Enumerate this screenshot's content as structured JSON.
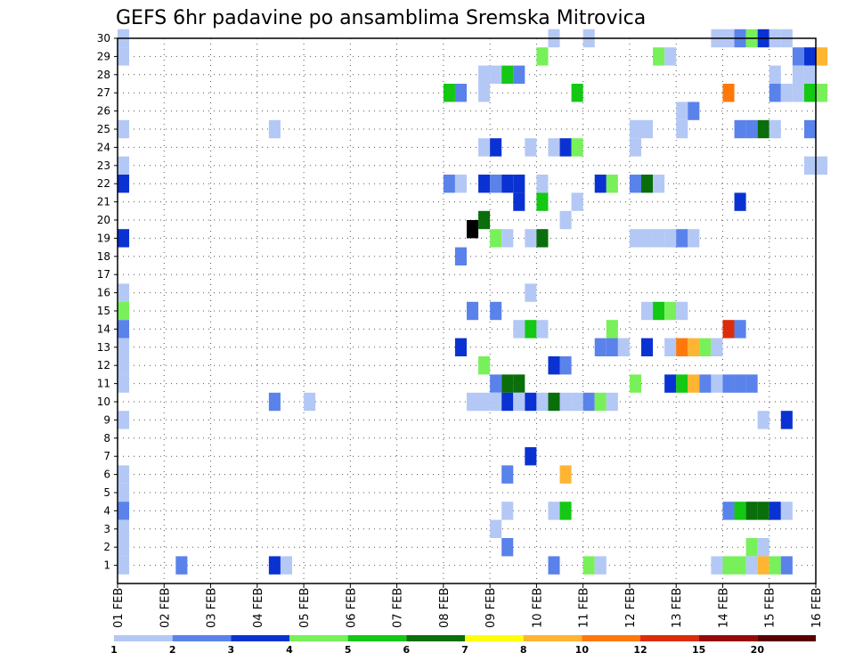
{
  "chart_data": {
    "type": "heatmap",
    "title": "GEFS 6hr padavine po ansamblima Sremska Mitrovica",
    "xlabel": "",
    "ylabel": "",
    "x_ticks": [
      "01 FEB",
      "02 FEB",
      "03 FEB",
      "04 FEB",
      "05 FEB",
      "06 FEB",
      "07 FEB",
      "08 FEB",
      "09 FEB",
      "10 FEB",
      "11 FEB",
      "12 FEB",
      "13 FEB",
      "14 FEB",
      "15 FEB",
      "16 FEB"
    ],
    "y_ticks": [
      "1",
      "2",
      "3",
      "4",
      "5",
      "6",
      "7",
      "8",
      "9",
      "10",
      "11",
      "12",
      "13",
      "14",
      "15",
      "16",
      "17",
      "18",
      "19",
      "20",
      "21",
      "22",
      "23",
      "24",
      "25",
      "26",
      "27",
      "28",
      "29",
      "30"
    ],
    "ylim": [
      0,
      30
    ],
    "time_step_hours": 6,
    "grid": true,
    "legend": {
      "placement": "bottom",
      "thresholds": [
        "1",
        "2",
        "3",
        "4",
        "5",
        "6",
        "7",
        "8",
        "10",
        "12",
        "15",
        "20"
      ],
      "colors": [
        "#b4c8f5",
        "#5a82eb",
        "#0a32d2",
        "#78f05a",
        "#14c814",
        "#0a6e0a",
        "#ffff0a",
        "#ffb432",
        "#ff780a",
        "#dc2d0a",
        "#960a0a",
        "#5a0000"
      ]
    },
    "cells": [
      [
        0,
        1.0,
        1
      ],
      [
        0,
        30.0,
        1
      ],
      [
        0,
        29.0,
        1
      ],
      [
        0,
        25.0,
        1
      ],
      [
        0,
        23.0,
        1
      ],
      [
        0,
        22.0,
        3
      ],
      [
        0,
        19.0,
        3
      ],
      [
        0,
        16.0,
        1
      ],
      [
        0,
        15.0,
        4
      ],
      [
        0,
        14.0,
        2
      ],
      [
        0,
        13.0,
        1
      ],
      [
        0,
        12.0,
        1
      ],
      [
        0,
        11.0,
        1
      ],
      [
        0,
        9.0,
        1
      ],
      [
        0,
        6.0,
        1
      ],
      [
        0,
        5.0,
        1
      ],
      [
        0,
        4.0,
        2
      ],
      [
        0,
        3.0,
        1
      ],
      [
        0,
        2.0,
        1
      ],
      [
        1.25,
        1.0,
        2
      ],
      [
        3.25,
        1.0,
        3
      ],
      [
        3.5,
        1.0,
        1
      ],
      [
        3.25,
        25.0,
        1
      ],
      [
        3.25,
        10.0,
        2
      ],
      [
        4.0,
        10.0,
        1
      ],
      [
        7.0,
        27.0,
        5
      ],
      [
        7.25,
        27.0,
        2
      ],
      [
        7.0,
        22.0,
        2
      ],
      [
        7.25,
        22.0,
        1
      ],
      [
        7.25,
        18.0,
        2
      ],
      [
        7.25,
        13.0,
        3
      ],
      [
        7.5,
        19.5,
        15
      ],
      [
        7.5,
        15.0,
        2
      ],
      [
        7.5,
        10.0,
        1
      ],
      [
        7.75,
        10.0,
        1
      ],
      [
        7.75,
        20.0,
        6
      ],
      [
        7.75,
        28.0,
        1
      ],
      [
        7.75,
        27.0,
        1
      ],
      [
        7.75,
        24.0,
        1
      ],
      [
        7.75,
        22.0,
        3
      ],
      [
        7.75,
        12.0,
        4
      ],
      [
        8.0,
        28.0,
        1
      ],
      [
        8.0,
        24.0,
        3
      ],
      [
        8.0,
        22.0,
        2
      ],
      [
        8.0,
        19.0,
        4
      ],
      [
        8.0,
        15.0,
        2
      ],
      [
        8.0,
        11.0,
        2
      ],
      [
        8.0,
        10.0,
        1
      ],
      [
        8.0,
        3.0,
        1
      ],
      [
        8.25,
        28.0,
        5
      ],
      [
        8.25,
        22.0,
        3
      ],
      [
        8.25,
        19.0,
        1
      ],
      [
        8.25,
        11.0,
        6
      ],
      [
        8.25,
        10.0,
        3
      ],
      [
        8.25,
        6.0,
        2
      ],
      [
        8.25,
        4.0,
        1
      ],
      [
        8.25,
        2.0,
        2
      ],
      [
        8.5,
        28.0,
        2
      ],
      [
        8.5,
        22.0,
        3
      ],
      [
        8.5,
        21.0,
        3
      ],
      [
        8.5,
        14.0,
        1
      ],
      [
        8.5,
        11.0,
        6
      ],
      [
        8.5,
        10.0,
        1
      ],
      [
        8.75,
        24.0,
        1
      ],
      [
        8.75,
        19.0,
        1
      ],
      [
        8.75,
        16.0,
        1
      ],
      [
        8.75,
        14.0,
        5
      ],
      [
        8.75,
        10.0,
        3
      ],
      [
        8.75,
        7.0,
        3
      ],
      [
        9.0,
        29.0,
        4
      ],
      [
        9.0,
        22.0,
        1
      ],
      [
        9.0,
        21.0,
        5
      ],
      [
        9.0,
        19.0,
        6
      ],
      [
        9.0,
        14.0,
        1
      ],
      [
        9.0,
        10.0,
        1
      ],
      [
        9.25,
        30.0,
        1
      ],
      [
        9.25,
        24.0,
        1
      ],
      [
        9.25,
        12.0,
        3
      ],
      [
        9.25,
        10.0,
        6
      ],
      [
        9.25,
        4.0,
        1
      ],
      [
        9.25,
        1.0,
        2
      ],
      [
        9.5,
        24.0,
        3
      ],
      [
        9.5,
        12.0,
        2
      ],
      [
        9.5,
        10.0,
        1
      ],
      [
        9.5,
        6.0,
        8
      ],
      [
        9.5,
        4.0,
        5
      ],
      [
        9.5,
        20.0,
        1
      ],
      [
        9.75,
        27.0,
        5
      ],
      [
        9.75,
        24.0,
        4
      ],
      [
        9.75,
        21.0,
        1
      ],
      [
        9.75,
        10.0,
        1
      ],
      [
        10.0,
        30.0,
        1
      ],
      [
        10.0,
        10.0,
        2
      ],
      [
        10.0,
        1.0,
        4
      ],
      [
        10.25,
        22.0,
        3
      ],
      [
        10.25,
        13.0,
        2
      ],
      [
        10.25,
        10.0,
        4
      ],
      [
        10.25,
        1.0,
        1
      ],
      [
        10.5,
        22.0,
        4
      ],
      [
        10.5,
        14.0,
        4
      ],
      [
        10.5,
        13.0,
        2
      ],
      [
        10.5,
        10.0,
        1
      ],
      [
        10.75,
        13.0,
        1
      ],
      [
        11.0,
        24.0,
        1
      ],
      [
        11.0,
        25.0,
        1
      ],
      [
        11.0,
        22.0,
        2
      ],
      [
        11.0,
        19.0,
        1
      ],
      [
        11.0,
        11.0,
        4
      ],
      [
        11.25,
        25.0,
        1
      ],
      [
        11.25,
        22.0,
        6
      ],
      [
        11.25,
        19.0,
        1
      ],
      [
        11.25,
        15.0,
        1
      ],
      [
        11.25,
        13.0,
        3
      ],
      [
        11.5,
        29.0,
        4
      ],
      [
        11.5,
        22.0,
        1
      ],
      [
        11.5,
        19.0,
        1
      ],
      [
        11.5,
        15.0,
        5
      ],
      [
        11.75,
        29.0,
        1
      ],
      [
        11.75,
        19.0,
        1
      ],
      [
        11.75,
        15.0,
        4
      ],
      [
        11.75,
        13.0,
        1
      ],
      [
        11.75,
        11.0,
        3
      ],
      [
        12.0,
        26.0,
        1
      ],
      [
        12.0,
        25.0,
        1
      ],
      [
        12.0,
        19.0,
        2
      ],
      [
        12.0,
        15.0,
        1
      ],
      [
        12.0,
        13.0,
        9
      ],
      [
        12.0,
        11.0,
        5
      ],
      [
        12.25,
        26.0,
        2
      ],
      [
        12.25,
        19.0,
        1
      ],
      [
        12.25,
        13.0,
        8
      ],
      [
        12.25,
        11.0,
        8
      ],
      [
        12.5,
        13.0,
        4
      ],
      [
        12.5,
        11.0,
        2
      ],
      [
        12.75,
        30.0,
        1
      ],
      [
        12.75,
        13.0,
        1
      ],
      [
        12.75,
        11.0,
        1
      ],
      [
        12.75,
        1.0,
        1
      ],
      [
        13.0,
        30.0,
        1
      ],
      [
        13.0,
        27.0,
        9
      ],
      [
        13.0,
        14.0,
        10
      ],
      [
        13.0,
        11.0,
        2
      ],
      [
        13.0,
        4.0,
        2
      ],
      [
        13.0,
        1.0,
        4
      ],
      [
        13.25,
        30.0,
        2
      ],
      [
        13.25,
        25.0,
        2
      ],
      [
        13.25,
        21.0,
        3
      ],
      [
        13.25,
        14.0,
        2
      ],
      [
        13.25,
        11.0,
        2
      ],
      [
        13.25,
        4.0,
        5
      ],
      [
        13.25,
        1.0,
        4
      ],
      [
        13.5,
        30.0,
        4
      ],
      [
        13.5,
        25.0,
        2
      ],
      [
        13.5,
        11.0,
        2
      ],
      [
        13.5,
        4.0,
        6
      ],
      [
        13.5,
        2.0,
        4
      ],
      [
        13.5,
        1.0,
        1
      ],
      [
        13.75,
        30.0,
        3
      ],
      [
        13.75,
        25.0,
        6
      ],
      [
        13.75,
        9.0,
        1
      ],
      [
        13.75,
        4.0,
        6
      ],
      [
        13.75,
        2.0,
        1
      ],
      [
        13.75,
        1.0,
        8
      ],
      [
        14.0,
        30.0,
        1
      ],
      [
        14.0,
        28.0,
        1
      ],
      [
        14.0,
        27.0,
        2
      ],
      [
        14.0,
        25.0,
        1
      ],
      [
        14.0,
        4.0,
        3
      ],
      [
        14.0,
        1.0,
        4
      ],
      [
        14.25,
        30.0,
        1
      ],
      [
        14.25,
        27.0,
        1
      ],
      [
        14.25,
        9.0,
        3
      ],
      [
        14.25,
        4.0,
        1
      ],
      [
        14.25,
        1.0,
        2
      ],
      [
        14.5,
        29.0,
        2
      ],
      [
        14.5,
        28.0,
        1
      ],
      [
        14.5,
        27.0,
        1
      ],
      [
        14.75,
        29.0,
        3
      ],
      [
        14.75,
        25.0,
        2
      ],
      [
        14.75,
        23.0,
        1
      ],
      [
        14.75,
        27.0,
        5
      ],
      [
        14.75,
        28.0,
        1
      ],
      [
        15.0,
        29.0,
        8
      ],
      [
        15.0,
        27.0,
        4
      ],
      [
        15.0,
        23.0,
        1
      ]
    ]
  }
}
